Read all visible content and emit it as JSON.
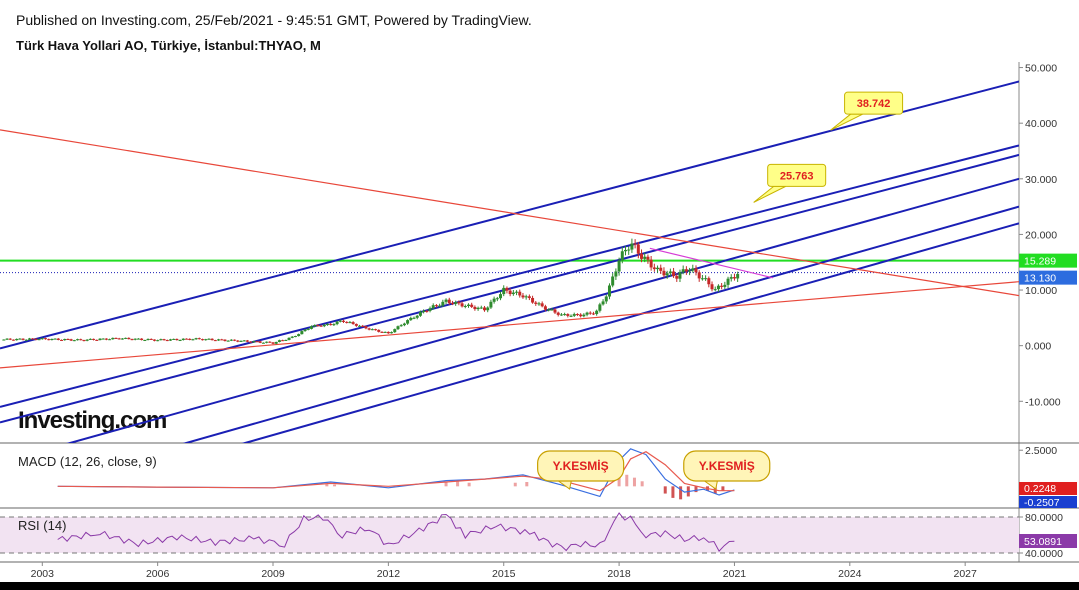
{
  "header": {
    "published": "Published on Investing.com, 25/Feb/2021 - 9:45:51 GMT, Powered by TradingView.",
    "symbol": "Türk Hava Yollari AO, Türkiye, İstanbul:THYAO, M"
  },
  "watermark": "Investing.com",
  "colors": {
    "channel": "#1a1fb5",
    "red_line": "#e8473a",
    "green_line": "#22dd22",
    "magenta_line": "#d63cd6",
    "candle_up": "#2e8b2e",
    "candle_down": "#c62828",
    "macd_line": "#3a6fe0",
    "signal_line": "#e85a4f",
    "rsi_line": "#8b3aa8",
    "rsi_band": "#f2e3f2",
    "callout_fill": "#ffff88"
  },
  "chart_data": [
    {
      "type": "candlestick",
      "title": "Türk Hava Yollari AO, Türkiye, İstanbul:THYAO, M",
      "interval": "M",
      "yaxis_ticks": [
        "-10.000",
        "0.000",
        "10.000",
        "20.000",
        "30.000",
        "40.000",
        "50.000"
      ],
      "ylim": [
        -17.5,
        51
      ],
      "xaxis_ticks": [
        "2003",
        "2006",
        "2009",
        "2012",
        "2015",
        "2018",
        "2021",
        "2024",
        "2027"
      ],
      "xlim": [
        2001.9,
        2028.4
      ],
      "price_series": {
        "x": [
          2002.0,
          2003.0,
          2004.0,
          2005.0,
          2006.0,
          2007.0,
          2008.0,
          2009.0,
          2009.5,
          2010.0,
          2010.5,
          2010.8,
          2011.5,
          2012.0,
          2012.5,
          2013.0,
          2013.5,
          2014.0,
          2014.5,
          2015.0,
          2015.5,
          2016.0,
          2016.5,
          2017.0,
          2017.4,
          2017.7,
          2018.0,
          2018.3,
          2018.6,
          2019.0,
          2019.5,
          2019.8,
          2020.2,
          2020.5,
          2020.9,
          2021.1
        ],
        "y": [
          1.1,
          1.2,
          1.0,
          1.3,
          1.0,
          1.2,
          0.9,
          0.5,
          1.5,
          3.5,
          3.8,
          4.5,
          3.0,
          2.2,
          4.5,
          6.5,
          8.0,
          7.2,
          6.5,
          10.0,
          9.0,
          7.0,
          5.5,
          5.5,
          6.0,
          9.5,
          15.5,
          18.5,
          16.0,
          13.5,
          12.5,
          14.0,
          12.0,
          10.0,
          12.0,
          13.1
        ]
      },
      "current_price": 13.13,
      "current_price_label": "13.130",
      "horizontal_level": 15.289,
      "horizontal_level_label": "15.289",
      "trend_lines": [
        {
          "color": "channel",
          "x": [
            2001.9,
            2028.4
          ],
          "y": [
            -0.5,
            47.5
          ]
        },
        {
          "color": "channel",
          "x": [
            2001.9,
            2028.4
          ],
          "y": [
            -11.0,
            36.0
          ]
        },
        {
          "color": "channel",
          "x": [
            2001.9,
            2028.4
          ],
          "y": [
            -13.8,
            34.3
          ]
        },
        {
          "color": "channel",
          "x": [
            2001.9,
            2028.4
          ],
          "y": [
            -21.0,
            30.0
          ]
        },
        {
          "color": "channel",
          "x": [
            2001.9,
            2028.4
          ],
          "y": [
            -27.0,
            25.0
          ]
        },
        {
          "color": "channel",
          "x": [
            2001.9,
            2028.4
          ],
          "y": [
            -30.0,
            22.0
          ]
        },
        {
          "color": "red_line",
          "x": [
            2001.9,
            2028.4
          ],
          "y": [
            38.8,
            9.0
          ]
        },
        {
          "color": "red_line",
          "x": [
            2001.9,
            2028.4
          ],
          "y": [
            -4.0,
            11.5
          ]
        },
        {
          "color": "magenta_line",
          "x": [
            2018.8,
            2022.0
          ],
          "y": [
            17.5,
            12.2
          ]
        }
      ],
      "annotations": [
        {
          "text": "38.742",
          "x": 2023.5,
          "y": 38.742
        },
        {
          "text": "25.763",
          "x": 2021.5,
          "y": 25.763
        }
      ]
    },
    {
      "type": "line",
      "title": "MACD (12, 26, close, 9)",
      "yaxis_ticks": [
        "2.5000"
      ],
      "ylim": [
        -1.5,
        3.0
      ],
      "x": [
        2003.4,
        2006.0,
        2009.0,
        2010.5,
        2012.0,
        2013.5,
        2014.5,
        2015.5,
        2016.5,
        2017.5,
        2018.0,
        2018.3,
        2018.7,
        2019.2,
        2019.7,
        2020.2,
        2020.6,
        2021.0
      ],
      "series": [
        {
          "name": "MACD",
          "values": [
            0.0,
            -0.05,
            -0.1,
            0.3,
            -0.1,
            0.4,
            0.5,
            0.8,
            0.1,
            -0.7,
            1.8,
            2.6,
            2.2,
            0.5,
            -0.4,
            -0.2,
            -0.6,
            -0.25
          ]
        },
        {
          "name": "Signal",
          "values": [
            0.0,
            -0.05,
            -0.1,
            0.2,
            0.0,
            0.3,
            0.5,
            0.7,
            0.4,
            -0.3,
            0.6,
            1.9,
            2.4,
            1.5,
            0.2,
            -0.1,
            -0.3,
            -0.3
          ]
        }
      ],
      "histogram_x": [
        2010.4,
        2010.6,
        2013.5,
        2013.8,
        2014.1,
        2015.3,
        2015.6,
        2018.0,
        2018.2,
        2018.4,
        2018.6,
        2019.2,
        2019.4,
        2019.6,
        2019.8,
        2020.0,
        2020.3,
        2020.5,
        2020.7
      ],
      "histogram": [
        0.15,
        0.12,
        0.3,
        0.35,
        0.25,
        0.25,
        0.3,
        0.7,
        0.8,
        0.6,
        0.35,
        -0.5,
        -0.8,
        -0.9,
        -0.7,
        -0.4,
        -0.3,
        -0.5,
        -0.3
      ],
      "value_labels": [
        "0.2248",
        "-0.2507"
      ],
      "callouts": [
        {
          "text": "Y.KESMİŞ",
          "x": 2017.0
        },
        {
          "text": "Y.KESMİŞ",
          "x": 2020.8
        }
      ]
    },
    {
      "type": "line",
      "title": "RSI (14)",
      "yaxis_ticks": [
        "80.0000",
        "40.0000"
      ],
      "ylim": [
        30,
        90
      ],
      "band": [
        40,
        80
      ],
      "x": [
        2003.4,
        2004.5,
        2005.5,
        2006.5,
        2007.5,
        2008.5,
        2009.3,
        2009.8,
        2010.3,
        2010.8,
        2011.5,
        2012.0,
        2012.8,
        2013.5,
        2014.0,
        2014.8,
        2015.3,
        2015.8,
        2016.5,
        2017.0,
        2017.5,
        2018.0,
        2018.3,
        2018.7,
        2019.2,
        2019.7,
        2020.2,
        2020.6,
        2021.0
      ],
      "series": [
        {
          "name": "RSI",
          "values": [
            55,
            62,
            50,
            58,
            52,
            56,
            50,
            78,
            80,
            60,
            68,
            48,
            65,
            82,
            60,
            70,
            66,
            60,
            45,
            50,
            48,
            82,
            78,
            60,
            62,
            55,
            58,
            45,
            53.0891
          ]
        }
      ],
      "value_label": "53.0891"
    }
  ]
}
